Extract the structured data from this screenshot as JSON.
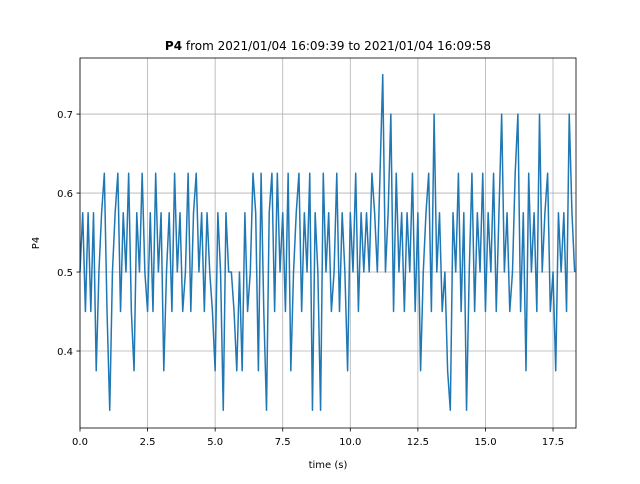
{
  "chart_data": {
    "type": "line",
    "title": {
      "bold": "P4",
      "rest": " from 2021/01/04 16:09:39 to 2021/01/04 16:09:58"
    },
    "xlabel": "time (s)",
    "ylabel": "P4",
    "xlim": [
      0,
      18.35
    ],
    "ylim": [
      0.3025,
      0.771
    ],
    "xticks": [
      {
        "value": 0,
        "label": "0.0"
      },
      {
        "value": 2.5,
        "label": "2.5"
      },
      {
        "value": 5,
        "label": "5.0"
      },
      {
        "value": 7.5,
        "label": "7.5"
      },
      {
        "value": 10,
        "label": "10.0"
      },
      {
        "value": 12.5,
        "label": "12.5"
      },
      {
        "value": 15,
        "label": "15.0"
      },
      {
        "value": 17.5,
        "label": "17.5"
      }
    ],
    "yticks": [
      0.4,
      0.5,
      0.6,
      0.7
    ],
    "grid": true,
    "x": [
      0,
      0.1,
      0.2,
      0.3,
      0.4,
      0.5,
      0.6,
      0.7,
      0.8,
      0.9,
      1,
      1.1,
      1.2,
      1.3,
      1.4,
      1.5,
      1.6,
      1.7,
      1.8,
      1.9,
      2,
      2.1,
      2.2,
      2.3,
      2.4,
      2.5,
      2.6,
      2.7,
      2.8,
      2.9,
      3,
      3.1,
      3.2,
      3.3,
      3.4,
      3.5,
      3.6,
      3.7,
      3.8,
      3.9,
      4,
      4.1,
      4.2,
      4.3,
      4.4,
      4.5,
      4.6,
      4.7,
      4.8,
      4.9,
      5,
      5.1,
      5.2,
      5.3,
      5.4,
      5.5,
      5.6,
      5.7,
      5.8,
      5.9,
      6,
      6.1,
      6.2,
      6.3,
      6.4,
      6.5,
      6.6,
      6.7,
      6.8,
      6.9,
      7,
      7.1,
      7.2,
      7.3,
      7.4,
      7.5,
      7.6,
      7.7,
      7.8,
      7.9,
      8,
      8.1,
      8.2,
      8.3,
      8.4,
      8.5,
      8.6,
      8.7,
      8.8,
      8.9,
      9,
      9.1,
      9.2,
      9.3,
      9.4,
      9.5,
      9.6,
      9.7,
      9.8,
      9.9,
      10,
      10.1,
      10.2,
      10.3,
      10.4,
      10.5,
      10.6,
      10.7,
      10.8,
      10.9,
      11,
      11.1,
      11.2,
      11.3,
      11.4,
      11.5,
      11.6,
      11.7,
      11.8,
      11.9,
      12,
      12.1,
      12.2,
      12.3,
      12.4,
      12.5,
      12.6,
      12.7,
      12.8,
      12.9,
      13,
      13.1,
      13.2,
      13.3,
      13.4,
      13.5,
      13.6,
      13.7,
      13.8,
      13.9,
      14,
      14.1,
      14.2,
      14.3,
      14.4,
      14.5,
      14.6,
      14.7,
      14.8,
      14.9,
      15,
      15.1,
      15.2,
      15.3,
      15.4,
      15.5,
      15.6,
      15.7,
      15.8,
      15.9,
      16,
      16.1,
      16.2,
      16.3,
      16.4,
      16.5,
      16.6,
      16.7,
      16.8,
      16.9,
      17,
      17.1,
      17.2,
      17.3,
      17.4,
      17.5,
      17.6,
      17.7,
      17.8,
      17.9,
      18,
      18.1,
      18.2,
      18.3
    ],
    "series": [
      {
        "name": "P4",
        "color": "#1f77b4",
        "values": [
          0.5,
          0.575,
          0.45,
          0.575,
          0.45,
          0.575,
          0.375,
          0.5,
          0.575,
          0.625,
          0.45,
          0.325,
          0.5,
          0.575,
          0.625,
          0.45,
          0.575,
          0.5,
          0.625,
          0.45,
          0.375,
          0.575,
          0.5,
          0.625,
          0.5,
          0.45,
          0.575,
          0.45,
          0.625,
          0.5,
          0.575,
          0.375,
          0.5,
          0.575,
          0.45,
          0.625,
          0.5,
          0.575,
          0.45,
          0.5,
          0.625,
          0.45,
          0.575,
          0.625,
          0.5,
          0.575,
          0.45,
          0.575,
          0.5,
          0.45,
          0.375,
          0.575,
          0.5,
          0.325,
          0.575,
          0.5,
          0.5,
          0.45,
          0.375,
          0.5,
          0.375,
          0.575,
          0.45,
          0.5,
          0.625,
          0.575,
          0.375,
          0.625,
          0.45,
          0.325,
          0.575,
          0.625,
          0.45,
          0.625,
          0.5,
          0.575,
          0.45,
          0.625,
          0.375,
          0.5,
          0.575,
          0.625,
          0.45,
          0.575,
          0.5,
          0.625,
          0.325,
          0.575,
          0.5,
          0.325,
          0.625,
          0.5,
          0.575,
          0.45,
          0.5,
          0.625,
          0.45,
          0.575,
          0.5,
          0.375,
          0.575,
          0.5,
          0.625,
          0.45,
          0.575,
          0.5,
          0.575,
          0.5,
          0.625,
          0.575,
          0.5,
          0.625,
          0.75,
          0.5,
          0.575,
          0.7,
          0.45,
          0.625,
          0.5,
          0.575,
          0.45,
          0.575,
          0.5,
          0.625,
          0.45,
          0.575,
          0.375,
          0.5,
          0.575,
          0.625,
          0.45,
          0.7,
          0.5,
          0.575,
          0.45,
          0.5,
          0.375,
          0.325,
          0.575,
          0.5,
          0.625,
          0.45,
          0.575,
          0.325,
          0.5,
          0.625,
          0.45,
          0.575,
          0.5,
          0.625,
          0.45,
          0.575,
          0.5,
          0.625,
          0.45,
          0.575,
          0.7,
          0.5,
          0.575,
          0.45,
          0.5,
          0.625,
          0.7,
          0.45,
          0.575,
          0.375,
          0.625,
          0.5,
          0.575,
          0.45,
          0.7,
          0.5,
          0.575,
          0.625,
          0.45,
          0.5,
          0.375,
          0.575,
          0.5,
          0.575,
          0.45,
          0.7,
          0.575,
          0.5
        ]
      }
    ]
  }
}
